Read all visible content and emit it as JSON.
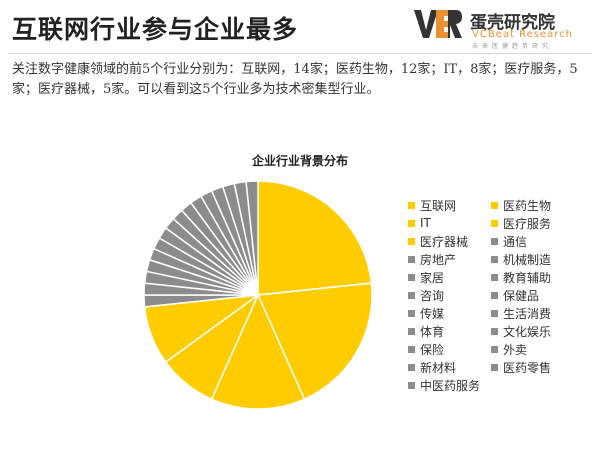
{
  "header": {
    "title": "互联网行业参与企业最多",
    "logo": {
      "mark": "VBR",
      "name": "蛋壳研究院",
      "name_en": "VCBeat Research",
      "name_cn_small": "未来医健趋势研究"
    }
  },
  "description": "关注数字健康领域的前5个行业分别为：互联网，14家；医药生物，12家；IT，8家；医疗服务，5家；医疗器械，5家。可以看到这5个行业多为技术密集型行业。",
  "colors": {
    "highlight": "#ffcc00",
    "other": "#8c8c8c",
    "slice_border": "#ffffff",
    "logo_accent": "#e8912e",
    "logo_dark": "#333333"
  },
  "icons": {
    "logo": "vbr-logo-icon"
  },
  "chart_data": {
    "type": "pie",
    "title": "企业行业背景分布",
    "legend_position": "right",
    "start": "12 o'clock",
    "direction": "clockwise",
    "categories": [
      "互联网",
      "医药生物",
      "IT",
      "医疗服务",
      "医疗器械",
      "通信",
      "房地产",
      "机械制造",
      "家居",
      "教育辅助",
      "咨询",
      "保健品",
      "传媒",
      "生活消费",
      "体育",
      "文化娱乐",
      "保险",
      "外卖",
      "新材料",
      "医药零售",
      "中医药服务"
    ],
    "values": [
      14,
      12,
      8,
      5,
      5,
      1,
      1,
      1,
      1,
      1,
      1,
      1,
      1,
      1,
      1,
      1,
      1,
      1,
      1,
      1,
      1
    ],
    "highlighted_count": 5
  }
}
